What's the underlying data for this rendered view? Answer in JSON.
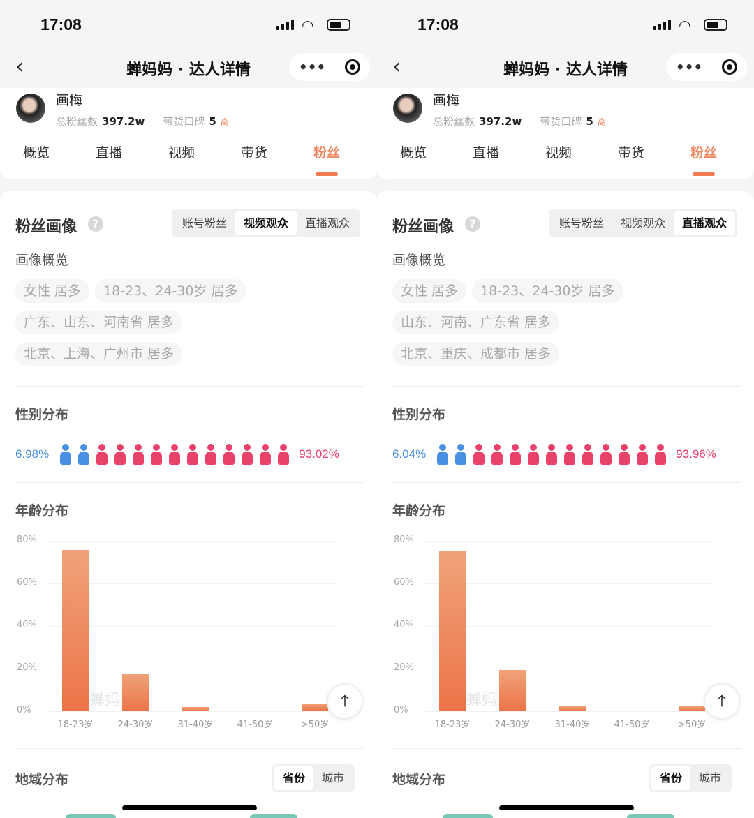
{
  "colors": {
    "accent": "#ee7b52",
    "male": "#4a90e2",
    "female": "#e8416a",
    "chart_bar": "#ec7448"
  },
  "phones": [
    {
      "status": {
        "time": "17:08"
      },
      "nav": {
        "title": "蝉妈妈 · 达人详情",
        "more": "•••"
      },
      "profile": {
        "name": "画梅",
        "fans_label": "总粉丝数",
        "fans": "397.2w",
        "rep_label": "带货口碑",
        "rep_score": "5",
        "rep_level": "高"
      },
      "tabs": [
        {
          "label": "概览"
        },
        {
          "label": "直播"
        },
        {
          "label": "视频"
        },
        {
          "label": "带货"
        },
        {
          "label": "粉丝",
          "active": true
        }
      ],
      "portrait": {
        "title": "粉丝画像",
        "help": "?",
        "segments": [
          {
            "label": "账号粉丝"
          },
          {
            "label": "视频观众",
            "active": true
          },
          {
            "label": "直播观众"
          }
        ],
        "overview_label": "画像概览",
        "chips": [
          [
            "女性 居多",
            "18-23、24-30岁 居多"
          ],
          [
            "广东、山东、河南省 居多"
          ],
          [
            "北京、上海、广州市 居多"
          ]
        ]
      },
      "gender": {
        "title": "性别分布",
        "male_pct": "6.98%",
        "female_pct": "93.02%",
        "male_icons": 2,
        "female_icons": 11
      },
      "age": {
        "title": "年龄分布",
        "watermark": "蝉妈"
      },
      "region": {
        "title": "地域分布",
        "segments": [
          {
            "label": "省份",
            "active": true
          },
          {
            "label": "城市"
          }
        ]
      }
    },
    {
      "status": {
        "time": "17:08"
      },
      "nav": {
        "title": "蝉妈妈 · 达人详情",
        "more": "•••"
      },
      "profile": {
        "name": "画梅",
        "fans_label": "总粉丝数",
        "fans": "397.2w",
        "rep_label": "带货口碑",
        "rep_score": "5",
        "rep_level": "高"
      },
      "tabs": [
        {
          "label": "概览"
        },
        {
          "label": "直播"
        },
        {
          "label": "视频"
        },
        {
          "label": "带货"
        },
        {
          "label": "粉丝",
          "active": true
        }
      ],
      "portrait": {
        "title": "粉丝画像",
        "help": "?",
        "segments": [
          {
            "label": "账号粉丝"
          },
          {
            "label": "视频观众"
          },
          {
            "label": "直播观众",
            "active": true
          }
        ],
        "overview_label": "画像概览",
        "chips": [
          [
            "女性 居多",
            "18-23、24-30岁 居多"
          ],
          [
            "山东、河南、广东省 居多"
          ],
          [
            "北京、重庆、成都市 居多"
          ]
        ]
      },
      "gender": {
        "title": "性别分布",
        "male_pct": "6.04%",
        "female_pct": "93.96%",
        "male_icons": 2,
        "female_icons": 11
      },
      "age": {
        "title": "年龄分布",
        "watermark": "蝉妈"
      },
      "region": {
        "title": "地域分布",
        "segments": [
          {
            "label": "省份",
            "active": true
          },
          {
            "label": "城市"
          }
        ]
      }
    }
  ],
  "chart_data": [
    {
      "type": "bar",
      "title": "年龄分布",
      "categories": [
        "18-23岁",
        "24-30岁",
        "31-40岁",
        "41-50岁",
        ">50岁"
      ],
      "values": [
        75.9,
        17.7,
        2.0,
        0.3,
        3.6
      ],
      "ylim": [
        0,
        80
      ],
      "yticks": [
        "0%",
        "20%",
        "40%",
        "60%",
        "80%"
      ],
      "grid": true
    },
    {
      "type": "bar",
      "title": "年龄分布",
      "categories": [
        "18-23岁",
        "24-30岁",
        "31-40岁",
        "41-50岁",
        ">50岁"
      ],
      "values": [
        75.2,
        19.4,
        2.2,
        0.3,
        2.2
      ],
      "ylim": [
        0,
        80
      ],
      "yticks": [
        "0%",
        "20%",
        "40%",
        "60%",
        "80%"
      ],
      "grid": true
    }
  ]
}
